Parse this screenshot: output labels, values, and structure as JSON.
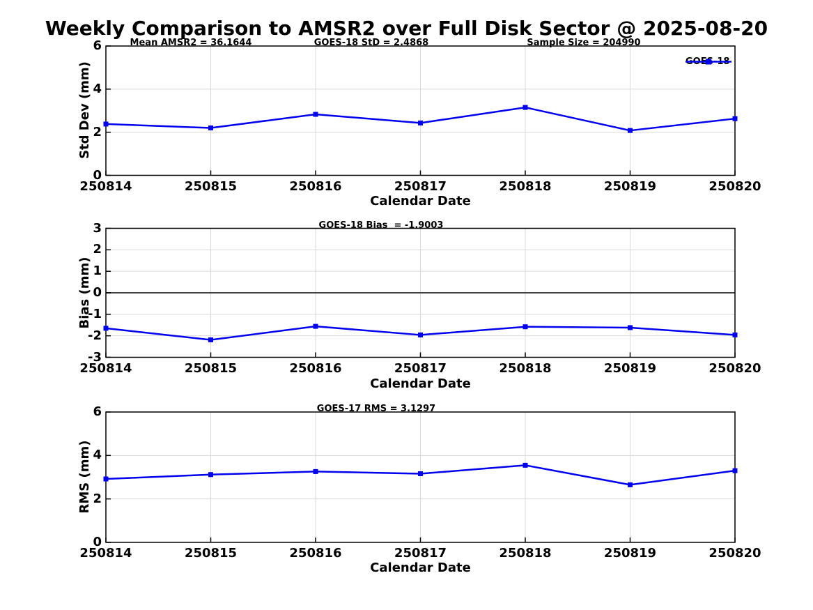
{
  "title": "Weekly Comparison to AMSR2 over Full Disk Sector @ 2025-08-20",
  "xlabel": "Calendar Date",
  "legend": {
    "label": "GOES-18"
  },
  "colors": {
    "line": "#0000ee",
    "marker": "#0000ee",
    "grid": "#d9d9d9",
    "zero_line": "#404040",
    "axis": "#000000",
    "text": "#000000",
    "background": "#ffffff"
  },
  "chart_data": [
    {
      "type": "line",
      "panel": "std-dev",
      "ylabel": "Std Dev (mm)",
      "xlabel": "Calendar Date",
      "categories": [
        "250814",
        "250815",
        "250816",
        "250817",
        "250818",
        "250819",
        "250820"
      ],
      "ylim": [
        0,
        6
      ],
      "yticks": [
        0,
        2,
        4,
        6
      ],
      "grid": true,
      "legend_position": "top-right-outside",
      "annotations": [
        "Mean AMSR2 = 36.1644",
        "GOES-18 StD = 2.4868",
        "Sample Size = 204990"
      ],
      "series": [
        {
          "name": "GOES-18",
          "marker": "square",
          "values": [
            2.38,
            2.2,
            2.83,
            2.43,
            3.15,
            2.08,
            2.63
          ]
        }
      ]
    },
    {
      "type": "line",
      "panel": "bias",
      "ylabel": "Bias (mm)",
      "xlabel": "Calendar Date",
      "categories": [
        "250814",
        "250815",
        "250816",
        "250817",
        "250818",
        "250819",
        "250820"
      ],
      "ylim": [
        -3,
        3
      ],
      "yticks": [
        3,
        2,
        1,
        0,
        -1,
        -2,
        -3
      ],
      "grid": true,
      "zero_line": true,
      "annotations": [
        "GOES-18 Bias  = -1.9003"
      ],
      "series": [
        {
          "name": "GOES-18",
          "marker": "square",
          "values": [
            -1.65,
            -2.19,
            -1.56,
            -1.96,
            -1.58,
            -1.62,
            -1.96
          ]
        }
      ]
    },
    {
      "type": "line",
      "panel": "rms",
      "ylabel": "RMS (mm)",
      "xlabel": "Calendar Date",
      "categories": [
        "250814",
        "250815",
        "250816",
        "250817",
        "250818",
        "250819",
        "250820"
      ],
      "ylim": [
        0,
        6
      ],
      "yticks": [
        0,
        2,
        4,
        6
      ],
      "grid": true,
      "annotations": [
        "GOES-17 RMS = 3.1297"
      ],
      "series": [
        {
          "name": "GOES-18",
          "marker": "square",
          "values": [
            2.92,
            3.12,
            3.26,
            3.16,
            3.55,
            2.65,
            3.3
          ]
        }
      ]
    }
  ]
}
